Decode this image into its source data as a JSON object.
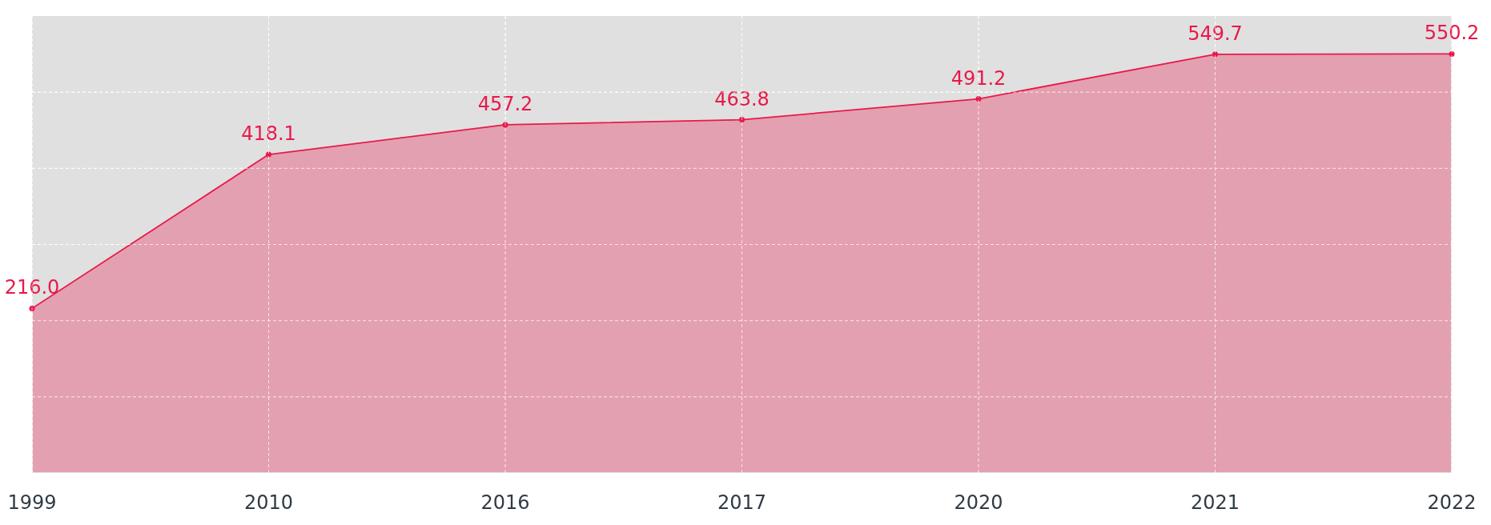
{
  "chart_data": {
    "type": "area",
    "categories": [
      "1999",
      "2010",
      "2016",
      "2017",
      "2020",
      "2021",
      "2022"
    ],
    "series": [
      {
        "color": "#e8194a",
        "values": [
          216.0,
          418.1,
          457.2,
          463.8,
          491.2,
          549.7,
          550.2
        ],
        "value_labels": [
          "216.0",
          "418.1",
          "457.2",
          "463.8",
          "491.2",
          "549.7",
          "550.2"
        ]
      }
    ],
    "ylim": [
      0,
      600
    ],
    "yticks": [
      {
        "value": 100,
        "label": null
      },
      {
        "value": 200,
        "label": null
      },
      {
        "value": 300,
        "label": null
      },
      {
        "value": 400,
        "label": null
      },
      {
        "value": 500,
        "label": null
      }
    ],
    "tick_labels": "x",
    "grid": true,
    "marker": "circle"
  }
}
